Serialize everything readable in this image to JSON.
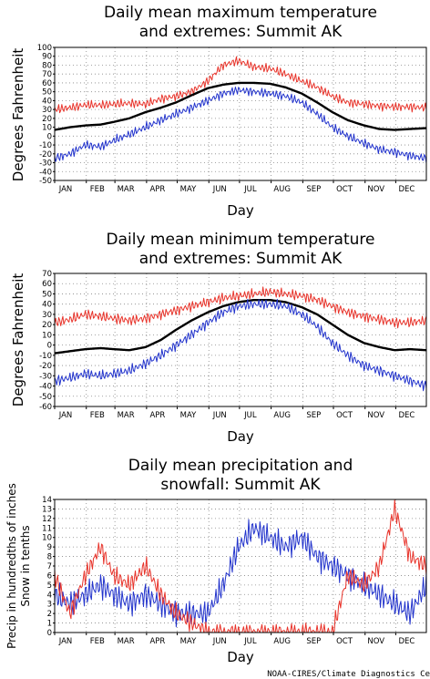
{
  "credit": "NOAA-CIRES/Climate Diagnostics Ce",
  "colors": {
    "extreme_high": "#e8332a",
    "extreme_low": "#2233cc",
    "mean": "#000000",
    "precip": "#2233cc",
    "snow": "#e8332a"
  },
  "chart_data": [
    {
      "type": "line",
      "title_lines": [
        "Daily mean maximum temperature",
        "and extremes: Summit AK"
      ],
      "ylabel": "Degrees Fahrenheit",
      "xlabel": "Day",
      "months": [
        "JAN",
        "FEB",
        "MAR",
        "APR",
        "MAY",
        "JUN",
        "JUL",
        "AUG",
        "SEP",
        "OCT",
        "NOV",
        "DEC"
      ],
      "ylim": [
        -50,
        100
      ],
      "yticks": [
        -50,
        -40,
        -30,
        -20,
        -10,
        0,
        10,
        20,
        30,
        40,
        50,
        60,
        70,
        80,
        90,
        100
      ],
      "grid": true,
      "x_day": [
        1,
        16,
        31,
        46,
        59,
        74,
        90,
        105,
        120,
        135,
        151,
        166,
        181,
        196,
        212,
        227,
        243,
        258,
        273,
        288,
        304,
        319,
        334,
        349,
        365
      ],
      "series": [
        {
          "key": "high",
          "values": [
            30,
            32,
            35,
            35,
            36,
            37,
            36,
            42,
            45,
            50,
            62,
            80,
            85,
            78,
            76,
            70,
            62,
            55,
            45,
            38,
            36,
            34,
            33,
            33,
            32
          ]
        },
        {
          "key": "mean",
          "values": [
            7,
            10,
            12,
            13,
            16,
            20,
            27,
            32,
            38,
            46,
            54,
            58,
            60,
            60,
            59,
            55,
            48,
            38,
            27,
            18,
            12,
            8,
            7,
            8,
            9
          ]
        },
        {
          "key": "low",
          "values": [
            -25,
            -20,
            -10,
            -12,
            -5,
            2,
            10,
            18,
            25,
            32,
            40,
            48,
            52,
            50,
            48,
            45,
            38,
            25,
            10,
            0,
            -8,
            -15,
            -18,
            -22,
            -25
          ]
        }
      ]
    },
    {
      "type": "line",
      "title_lines": [
        "Daily mean minimum temperature",
        "and extremes: Summit AK"
      ],
      "ylabel": "Degrees Fahrenheit",
      "xlabel": "Day",
      "months": [
        "JAN",
        "FEB",
        "MAR",
        "APR",
        "MAY",
        "JUN",
        "JUL",
        "AUG",
        "SEP",
        "OCT",
        "NOV",
        "DEC"
      ],
      "ylim": [
        -60,
        70
      ],
      "yticks": [
        -60,
        -50,
        -40,
        -30,
        -20,
        -10,
        0,
        10,
        20,
        30,
        40,
        50,
        60,
        70
      ],
      "grid": true,
      "x_day": [
        1,
        16,
        31,
        46,
        59,
        74,
        90,
        105,
        120,
        135,
        151,
        166,
        181,
        196,
        212,
        227,
        243,
        258,
        273,
        288,
        304,
        319,
        334,
        349,
        365
      ],
      "series": [
        {
          "key": "high",
          "values": [
            22,
            25,
            30,
            28,
            26,
            24,
            26,
            30,
            34,
            38,
            42,
            46,
            48,
            50,
            52,
            50,
            48,
            44,
            38,
            32,
            28,
            25,
            22,
            22,
            24
          ]
        },
        {
          "key": "mean",
          "values": [
            -8,
            -6,
            -4,
            -3,
            -4,
            -5,
            -2,
            5,
            15,
            24,
            32,
            38,
            42,
            44,
            44,
            42,
            37,
            30,
            20,
            10,
            2,
            -2,
            -5,
            -4,
            -5
          ]
        },
        {
          "key": "low",
          "values": [
            -35,
            -32,
            -28,
            -30,
            -28,
            -25,
            -18,
            -10,
            0,
            10,
            22,
            32,
            38,
            40,
            40,
            38,
            30,
            18,
            2,
            -10,
            -20,
            -25,
            -30,
            -35,
            -40
          ]
        }
      ]
    },
    {
      "type": "line",
      "title_lines": [
        "Daily mean precipitation and",
        "snowfall: Summit AK"
      ],
      "ylabel_lines": [
        "Precip in hundredths of inches",
        "Snow in tenths"
      ],
      "xlabel": "Day",
      "months": [
        "JAN",
        "FEB",
        "MAR",
        "APR",
        "MAY",
        "JUN",
        "JUL",
        "AUG",
        "SEP",
        "OCT",
        "NOV",
        "DEC"
      ],
      "ylim": [
        0,
        14
      ],
      "yticks": [
        0,
        1,
        2,
        3,
        4,
        5,
        6,
        7,
        8,
        9,
        10,
        11,
        12,
        13,
        14
      ],
      "grid": true,
      "x_day": [
        1,
        16,
        31,
        46,
        59,
        74,
        90,
        105,
        120,
        135,
        151,
        166,
        181,
        196,
        212,
        227,
        243,
        258,
        273,
        288,
        304,
        319,
        334,
        349,
        365
      ],
      "series": [
        {
          "key": "precip",
          "values": [
            4,
            3,
            4,
            5,
            4,
            3,
            4,
            3,
            2,
            2,
            2,
            5,
            9,
            11,
            10,
            9,
            10,
            8,
            7,
            6,
            5,
            4,
            3,
            2,
            5
          ]
        },
        {
          "key": "snow",
          "values": [
            6,
            2,
            6,
            9,
            6,
            5,
            7,
            4,
            2,
            1,
            0,
            0,
            0,
            0,
            0,
            0,
            0,
            0,
            0,
            6,
            5,
            7,
            13,
            8,
            7
          ]
        }
      ]
    }
  ]
}
